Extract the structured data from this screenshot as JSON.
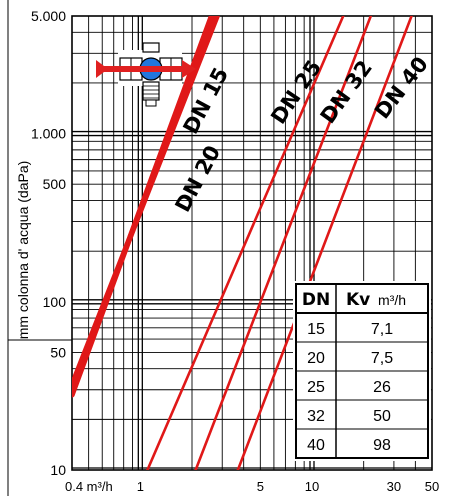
{
  "chart_data": {
    "type": "line",
    "ylabel": "mm colonna d' acqua  (daPa)",
    "xlabel": "",
    "x_scale": "log",
    "y_scale": "log",
    "xlim": [
      0.4,
      50
    ],
    "ylim": [
      10,
      5000
    ],
    "x_ticks": [
      {
        "value": 0.4,
        "label": "0.4 m³/h"
      },
      {
        "value": 1,
        "label": "1"
      },
      {
        "value": 5,
        "label": "5"
      },
      {
        "value": 10,
        "label": "10"
      },
      {
        "value": 30,
        "label": "30"
      },
      {
        "value": 50,
        "label": "50"
      }
    ],
    "y_ticks": [
      {
        "value": 5000,
        "label": "5.000"
      },
      {
        "value": 1000,
        "label": "1.000"
      },
      {
        "value": 500,
        "label": "500"
      },
      {
        "value": 100,
        "label": "100"
      },
      {
        "value": 50,
        "label": "50"
      },
      {
        "value": 10,
        "label": "10"
      }
    ],
    "series": [
      {
        "name": "DN 15",
        "points": [
          [
            0.4,
            28
          ],
          [
            2.6,
            5000
          ]
        ],
        "thick": true
      },
      {
        "name": "DN 20",
        "points": [
          [
            0.4,
            32
          ],
          [
            2.8,
            5000
          ]
        ],
        "thick": true
      },
      {
        "name": "DN 25",
        "points": [
          [
            1.1,
            10
          ],
          [
            15.2,
            5000
          ]
        ],
        "thick": false
      },
      {
        "name": "DN 32",
        "points": [
          [
            2.1,
            10
          ],
          [
            22,
            5000
          ]
        ],
        "thick": false
      },
      {
        "name": "DN 40",
        "points": [
          [
            3.7,
            10
          ],
          [
            38,
            5000
          ]
        ],
        "thick": false
      }
    ],
    "series_labels": [
      "DN 15",
      "DN 20",
      "DN 25",
      "DN 32",
      "DN 40"
    ],
    "line_color": "#e01818",
    "grid": true,
    "table": {
      "headers": [
        "DN",
        "Kv",
        "m³/h"
      ],
      "rows": [
        [
          "15",
          "7,1"
        ],
        [
          "20",
          "7,5"
        ],
        [
          "25",
          "26"
        ],
        [
          "32",
          "50"
        ],
        [
          "40",
          "98"
        ]
      ]
    },
    "icon": "valve-flow-icon",
    "arrow_color": "#e02020",
    "ball_color": "#2277dd"
  }
}
